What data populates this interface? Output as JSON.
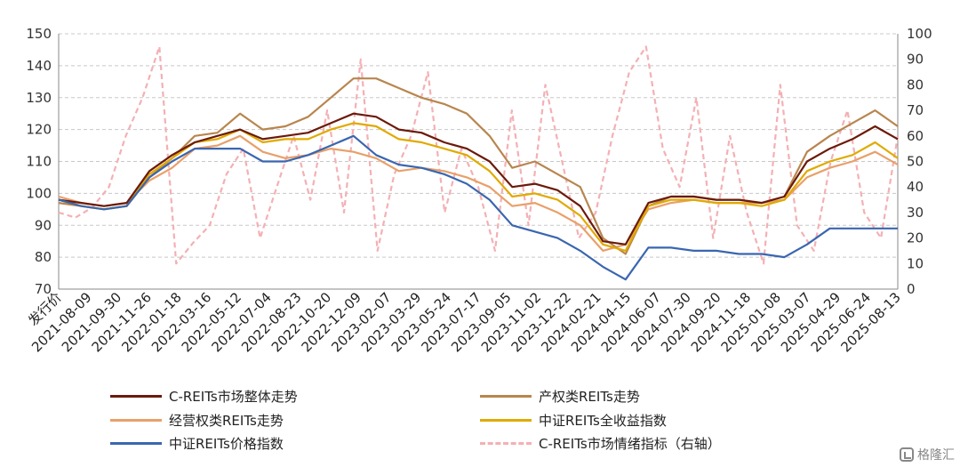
{
  "chart_data": {
    "type": "line",
    "x_ticks": [
      "发行价",
      "2021-08-09",
      "2021-09-30",
      "2021-11-26",
      "2022-01-18",
      "2022-03-16",
      "2022-05-12",
      "2022-07-04",
      "2022-08-23",
      "2022-10-20",
      "2022-12-09",
      "2023-02-07",
      "2023-03-29",
      "2023-05-24",
      "2023-07-17",
      "2023-09-05",
      "2023-11-02",
      "2023-12-22",
      "2024-02-21",
      "2024-04-15",
      "2024-06-07",
      "2024-07-30",
      "2024-09-20",
      "2024-11-18",
      "2025-01-08",
      "2025-03-07",
      "2025-04-29",
      "2025-06-24",
      "2025-08-13"
    ],
    "y_left": {
      "min": 70,
      "max": 150,
      "ticks": [
        70,
        80,
        90,
        100,
        110,
        120,
        130,
        140,
        150
      ]
    },
    "y_right": {
      "min": 0,
      "max": 100,
      "ticks": [
        0,
        10,
        20,
        30,
        40,
        50,
        60,
        70,
        80,
        90,
        100
      ]
    },
    "grid": true,
    "legend_position": "bottom",
    "series": [
      {
        "name": "C-REITs市场整体走势",
        "axis": "left",
        "color": "#6b1a0a",
        "style": "solid",
        "values": [
          98,
          97,
          96,
          97,
          107,
          112,
          116,
          118,
          120,
          117,
          118,
          119,
          122,
          125,
          124,
          120,
          119,
          116,
          114,
          110,
          102,
          103,
          101,
          96,
          85,
          84,
          97,
          99,
          99,
          98,
          98,
          97,
          99,
          110,
          114,
          117,
          121,
          117
        ]
      },
      {
        "name": "产权类REITs走势",
        "axis": "left",
        "color": "#b8864e",
        "style": "solid",
        "values": [
          97,
          96,
          95,
          96,
          105,
          111,
          118,
          119,
          125,
          120,
          121,
          124,
          130,
          136,
          136,
          133,
          130,
          128,
          125,
          118,
          108,
          110,
          106,
          102,
          86,
          81,
          96,
          99,
          99,
          98,
          98,
          97,
          99,
          113,
          118,
          122,
          126,
          121
        ]
      },
      {
        "name": "经营权类REITs走势",
        "axis": "left",
        "color": "#e8a06a",
        "style": "solid",
        "values": [
          99,
          97,
          96,
          97,
          104,
          108,
          114,
          115,
          118,
          113,
          111,
          112,
          114,
          113,
          111,
          107,
          108,
          107,
          105,
          102,
          96,
          97,
          94,
          90,
          82,
          84,
          95,
          97,
          98,
          97,
          97,
          97,
          98,
          105,
          108,
          110,
          113,
          109
        ]
      },
      {
        "name": "中证REITs全收益指数",
        "axis": "left",
        "color": "#e0aa00",
        "style": "solid",
        "values": [
          98,
          96,
          95,
          96,
          106,
          111,
          116,
          117,
          120,
          116,
          117,
          117,
          120,
          122,
          121,
          117,
          116,
          114,
          112,
          107,
          99,
          100,
          98,
          93,
          84,
          82,
          96,
          98,
          98,
          97,
          97,
          96,
          98,
          107,
          110,
          112,
          116,
          111
        ]
      },
      {
        "name": "中证REITs价格指数",
        "axis": "left",
        "color": "#3a66b0",
        "style": "solid",
        "values": [
          98,
          96,
          95,
          96,
          105,
          110,
          114,
          114,
          114,
          110,
          110,
          112,
          115,
          118,
          112,
          109,
          108,
          106,
          103,
          98,
          90,
          88,
          86,
          82,
          77,
          73,
          83,
          83,
          82,
          82,
          81,
          81,
          80,
          84,
          89,
          89,
          89,
          89
        ]
      },
      {
        "name": "C-REITs市场情绪指标（右轴）",
        "axis": "right",
        "color": "#f4b0b4",
        "style": "dashed",
        "values": [
          30,
          28,
          32,
          40,
          60,
          75,
          95,
          10,
          18,
          25,
          45,
          55,
          20,
          40,
          60,
          35,
          70,
          30,
          90,
          15,
          45,
          60,
          85,
          30,
          55,
          40,
          15,
          70,
          25,
          80,
          50,
          20,
          30,
          60,
          85,
          95,
          55,
          40,
          75,
          20,
          60,
          30,
          10,
          80,
          25,
          15,
          50,
          70,
          30,
          20,
          60
        ]
      }
    ]
  }
}
